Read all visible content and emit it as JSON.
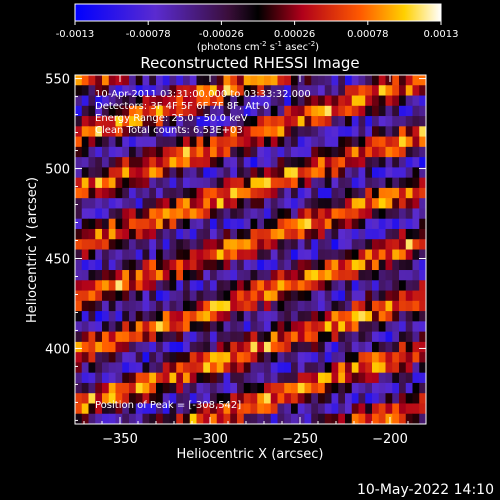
{
  "chart_data": {
    "type": "heatmap",
    "title": "Reconstructed RHESSI Image",
    "xlabel": "Heliocentric X (arcsec)",
    "ylabel": "Heliocentric Y (arcsec)",
    "xlim": [
      -375,
      -180
    ],
    "ylim": [
      358,
      552
    ],
    "x_ticks": [
      -350,
      -300,
      -250,
      -200
    ],
    "y_ticks": [
      400,
      450,
      500,
      550
    ],
    "colorbar": {
      "range": [
        -0.0013,
        0.0013
      ],
      "tick_values": [
        -0.0013,
        -0.00078,
        -0.00026,
        0.00026,
        0.00078,
        0.0013
      ],
      "tick_labels": [
        "-0.0013",
        "-0.00078",
        "-0.00026",
        "0.00026",
        "0.00078",
        "0.0013"
      ],
      "unit_base": "(photons cm",
      "unit_exp1": "-2",
      "unit_mid1": " s",
      "unit_exp2": "-1",
      "unit_mid2": " asec",
      "unit_exp3": "-2",
      "unit_end": ")"
    },
    "annotations": [
      "10-Apr-2011 03:31:00.000 to 03:33:32.000",
      "Detectors: 3F 4F 5F 6F 7F 8F, Att 0",
      "Energy Range: 25.0 - 50.0 keV",
      "Clean     Total counts: 6.53E+03"
    ],
    "peak_label": "Position of Peak = [-308,542]",
    "stripes": {
      "description": "diagonal fringe pattern",
      "slope_y_per_x": 0.32,
      "period_y_arcsec": 30,
      "peak_intensity": 0.0013
    }
  },
  "footer": {
    "date": "10-May-2022 14:10"
  }
}
